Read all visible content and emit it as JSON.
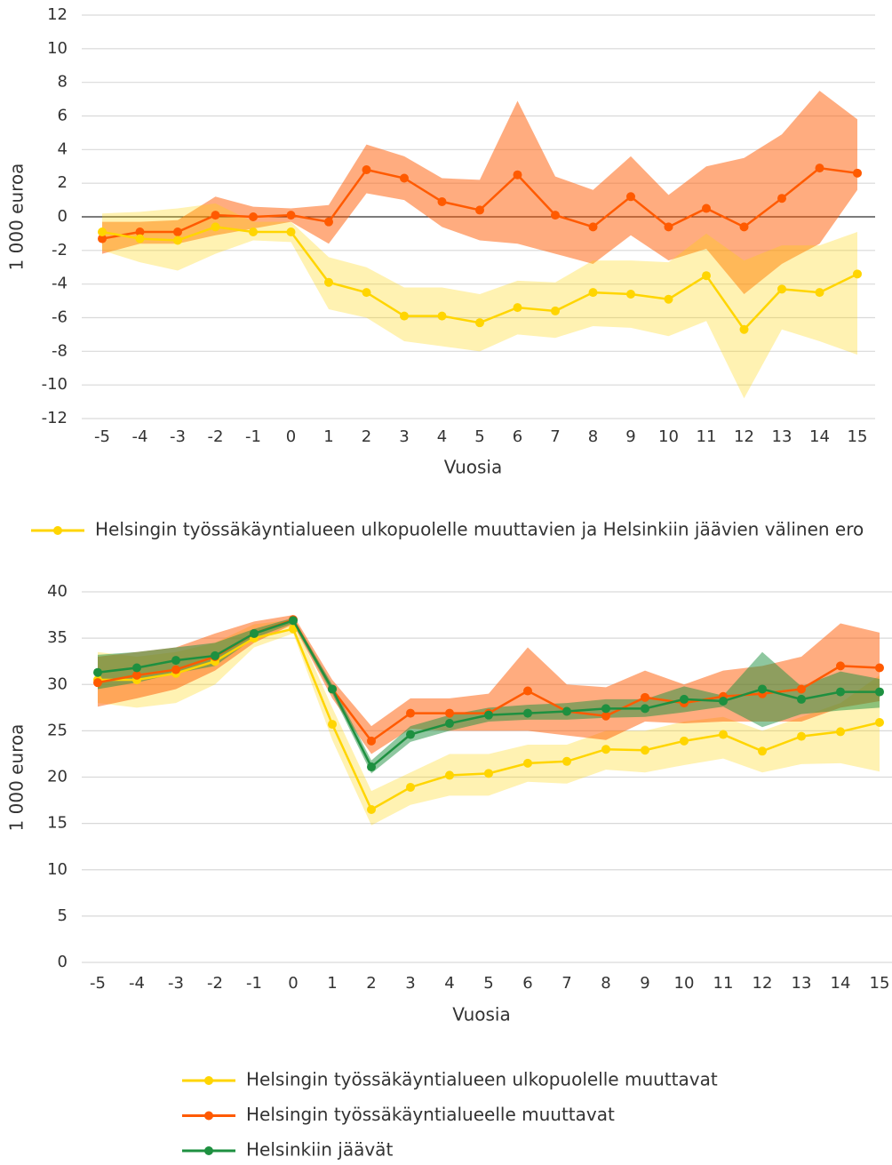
{
  "chart_data": [
    {
      "type": "line",
      "xlabel": "Vuosia",
      "ylabel": "1 000 euroa",
      "categories": [
        -5,
        -4,
        -3,
        -2,
        -1,
        0,
        1,
        2,
        3,
        4,
        5,
        6,
        7,
        8,
        9,
        10,
        11,
        12,
        13,
        14,
        15
      ],
      "ylim": [
        -12,
        12
      ],
      "yticks": [
        -12,
        -10,
        -8,
        -6,
        -4,
        -2,
        0,
        2,
        4,
        6,
        8,
        10,
        12
      ],
      "grid": true,
      "zero_line": true,
      "series": [
        {
          "color": "#ff5a00",
          "values": [
            -1.3,
            -0.9,
            -0.9,
            0.1,
            0,
            0.1,
            -0.3,
            2.8,
            2.3,
            0.9,
            0.4,
            2.5,
            0.1,
            -0.6,
            1.2,
            -0.6,
            0.5,
            -0.6,
            1.1,
            2.9,
            2.6
          ],
          "upper": [
            -0.3,
            -0.3,
            -0.2,
            1.2,
            0.6,
            0.5,
            0.7,
            4.3,
            3.6,
            2.3,
            2.2,
            6.9,
            2.4,
            1.6,
            3.6,
            1.3,
            3.0,
            3.5,
            4.9,
            7.5,
            5.8
          ],
          "lower": [
            -2.2,
            -1.6,
            -1.6,
            -1.1,
            -0.7,
            -0.3,
            -1.6,
            1.4,
            1.0,
            -0.6,
            -1.4,
            -1.6,
            -2.2,
            -2.8,
            -1.1,
            -2.6,
            -1.9,
            -4.6,
            -2.8,
            -1.6,
            1.6
          ]
        },
        {
          "name": "Helsingin työssäkäyntialueen ulkopuolelle muuttavien ja Helsinkiin jäävien välinen ero",
          "color": "#ffd500",
          "values": [
            -0.9,
            -1.3,
            -1.4,
            -0.6,
            -0.9,
            -0.9,
            -3.9,
            -4.5,
            -5.9,
            -5.9,
            -6.3,
            -5.4,
            -5.6,
            -4.5,
            -4.6,
            -4.9,
            -3.5,
            -6.7,
            -4.3,
            -4.5,
            -3.4
          ],
          "upper": [
            0.2,
            0.3,
            0.5,
            0.8,
            -0.3,
            -0.3,
            -2.4,
            -3.0,
            -4.2,
            -4.2,
            -4.6,
            -3.8,
            -3.9,
            -2.6,
            -2.6,
            -2.7,
            -1.0,
            -2.6,
            -1.7,
            -1.7,
            -0.9
          ],
          "lower": [
            -2.0,
            -2.7,
            -3.2,
            -2.2,
            -1.4,
            -1.5,
            -5.5,
            -6.0,
            -7.4,
            -7.7,
            -8.0,
            -7.0,
            -7.2,
            -6.5,
            -6.6,
            -7.1,
            -6.2,
            -10.8,
            -6.7,
            -7.4,
            -8.2
          ]
        }
      ]
    },
    {
      "type": "line",
      "xlabel": "Vuosia",
      "ylabel": "1 000 euroa",
      "categories": [
        -5,
        -4,
        -3,
        -2,
        -1,
        0,
        1,
        2,
        3,
        4,
        5,
        6,
        7,
        8,
        9,
        10,
        11,
        12,
        13,
        14,
        15
      ],
      "ylim": [
        0,
        40
      ],
      "yticks": [
        0,
        5,
        10,
        15,
        20,
        25,
        30,
        35,
        40
      ],
      "grid": true,
      "series": [
        {
          "name": "Helsingin työssäkäyntialueen ulkopuolelle muuttavat",
          "color": "#ffd500",
          "values": [
            30.5,
            30.5,
            31.2,
            32.5,
            35.0,
            36.0,
            25.7,
            16.5,
            18.9,
            20.2,
            20.4,
            21.5,
            21.7,
            23.0,
            22.9,
            23.9,
            24.6,
            22.8,
            24.4,
            24.9,
            25.9
          ],
          "upper": [
            33.5,
            33.0,
            33.5,
            34.5,
            36.5,
            37.0,
            27.5,
            18.5,
            20.5,
            22.5,
            22.5,
            23.5,
            23.5,
            25.0,
            25.0,
            26.0,
            26.5,
            25.0,
            26.5,
            28.0,
            31.0
          ],
          "lower": [
            28.0,
            27.5,
            28.0,
            30.0,
            34.0,
            35.5,
            24.0,
            14.8,
            17.0,
            18.0,
            18.0,
            19.5,
            19.3,
            20.8,
            20.5,
            21.3,
            22.0,
            20.5,
            21.4,
            21.5,
            20.6
          ]
        },
        {
          "name": "Helsingin työssäkäyntialueelle muuttavat",
          "color": "#ff5a00",
          "values": [
            30.2,
            31.0,
            31.6,
            33.0,
            35.5,
            37.0,
            29.5,
            23.9,
            26.9,
            26.9,
            26.9,
            29.3,
            27.1,
            26.6,
            28.6,
            28.0,
            28.7,
            29.0,
            29.5,
            32.0,
            31.8
          ],
          "upper": [
            33.0,
            33.5,
            34.0,
            35.5,
            36.8,
            37.5,
            30.5,
            25.5,
            28.5,
            28.5,
            29.0,
            34.0,
            30.0,
            29.7,
            31.5,
            30.0,
            31.5,
            32.0,
            33.0,
            36.6,
            35.6
          ],
          "lower": [
            27.6,
            28.5,
            29.5,
            31.5,
            34.5,
            36.5,
            28.5,
            22.5,
            25.2,
            25.0,
            25.0,
            25.0,
            24.5,
            24.0,
            26.0,
            25.8,
            26.0,
            26.0,
            26.0,
            27.5,
            28.2
          ]
        },
        {
          "name": "Helsinkiin jäävät",
          "color": "#1e9040",
          "values": [
            31.3,
            31.8,
            32.6,
            33.1,
            35.5,
            36.9,
            29.5,
            21.1,
            24.6,
            25.8,
            26.7,
            26.9,
            27.1,
            27.4,
            27.4,
            28.4,
            28.2,
            29.5,
            28.4,
            29.2,
            29.2
          ],
          "upper": [
            33.2,
            33.5,
            34.0,
            34.5,
            36.0,
            37.2,
            30.0,
            21.8,
            25.5,
            26.7,
            27.5,
            27.8,
            28.0,
            28.4,
            28.4,
            29.8,
            28.8,
            33.5,
            29.8,
            31.4,
            30.6
          ],
          "lower": [
            29.5,
            30.2,
            31.2,
            32.0,
            35.0,
            36.6,
            29.0,
            20.4,
            23.8,
            25.0,
            26.0,
            26.2,
            26.2,
            26.4,
            26.5,
            27.0,
            27.6,
            25.4,
            26.8,
            27.2,
            27.5
          ]
        }
      ]
    }
  ]
}
